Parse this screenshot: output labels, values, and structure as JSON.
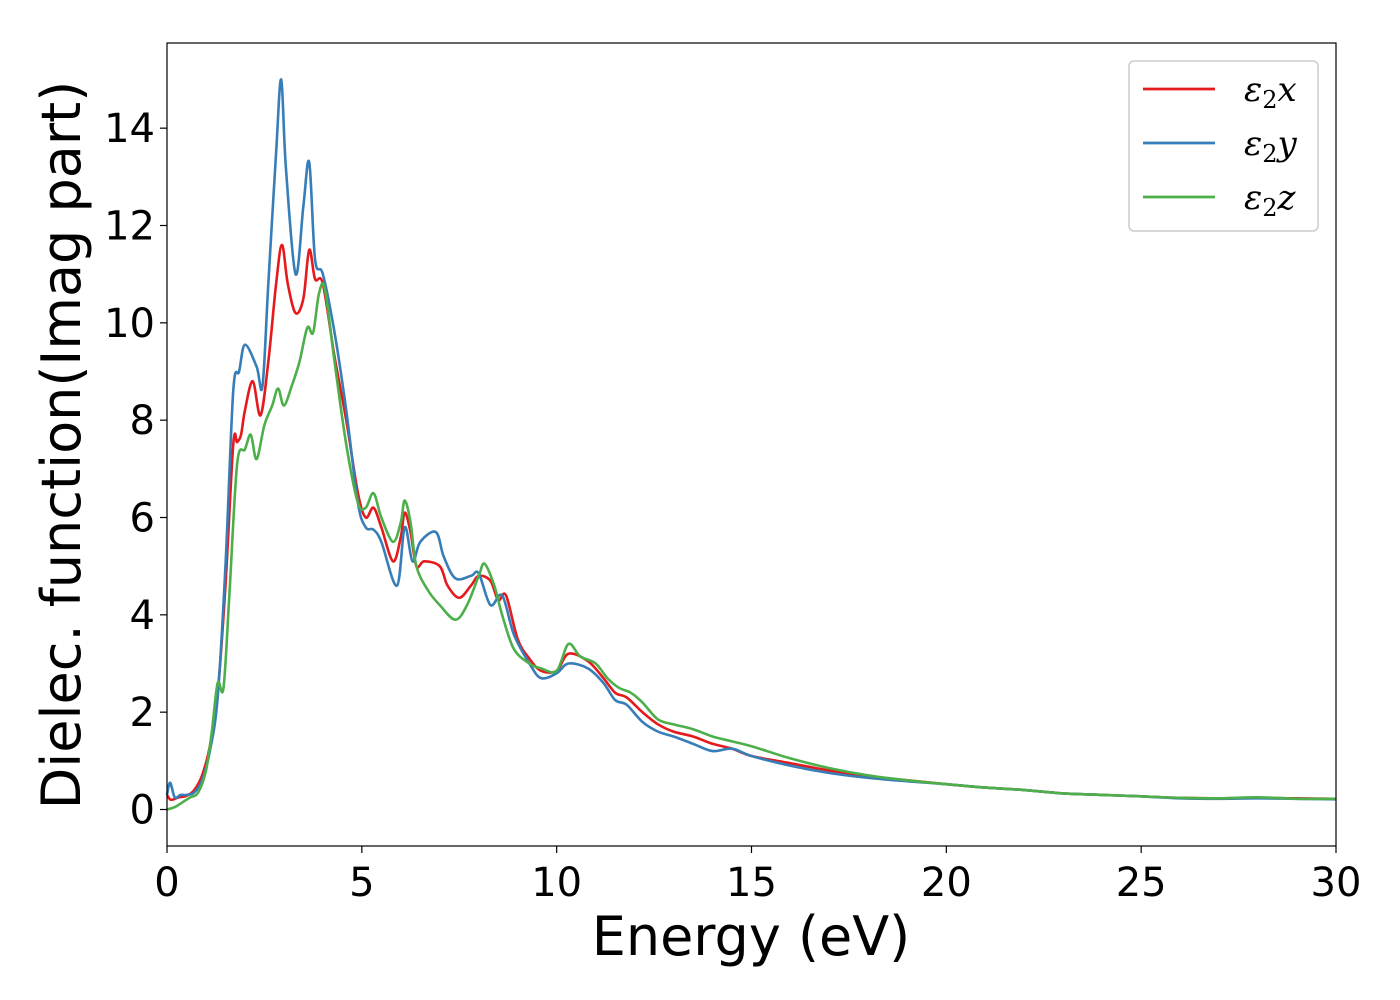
{
  "chart_data": {
    "type": "line",
    "title": "",
    "xlabel": "Energy (eV)",
    "ylabel": "Dielec. function(Imag part)",
    "xlim": [
      0,
      30
    ],
    "ylim": [
      -0.75,
      15.75
    ],
    "xticks": [
      0,
      5,
      10,
      15,
      20,
      25,
      30
    ],
    "yticks": [
      0,
      2,
      4,
      6,
      8,
      10,
      12,
      14
    ],
    "grid": false,
    "legend_position": "top-right",
    "series": [
      {
        "name": "ε₂x",
        "legend_main": "ε",
        "legend_sub": "2",
        "legend_suffix": "x",
        "color": "#e41a1c",
        "x": [
          0,
          0.1,
          0.3,
          0.5,
          0.7,
          0.9,
          1.1,
          1.3,
          1.5,
          1.7,
          1.8,
          1.9,
          2.0,
          2.2,
          2.4,
          2.6,
          2.8,
          2.95,
          3.1,
          3.3,
          3.5,
          3.65,
          3.8,
          4.0,
          4.3,
          4.6,
          4.9,
          5.1,
          5.3,
          5.5,
          5.8,
          6.0,
          6.1,
          6.25,
          6.4,
          6.6,
          7.0,
          7.2,
          7.5,
          7.8,
          8.0,
          8.3,
          8.5,
          8.7,
          9.0,
          9.3,
          9.6,
          10.0,
          10.3,
          10.8,
          11.2,
          11.5,
          11.8,
          12.2,
          12.6,
          13.0,
          13.5,
          14.0,
          14.5,
          15.0,
          16.0,
          17.0,
          18.0,
          19.0,
          20.0,
          21.0,
          22.0,
          23.0,
          24.0,
          25.0,
          26.0,
          27.0,
          28.0,
          29.0,
          30.0
        ],
        "y": [
          0.3,
          0.2,
          0.25,
          0.28,
          0.4,
          0.7,
          1.3,
          2.4,
          4.6,
          7.5,
          7.55,
          7.7,
          8.2,
          8.8,
          8.1,
          9.2,
          10.8,
          11.6,
          10.8,
          10.2,
          10.5,
          11.5,
          10.9,
          10.8,
          9.3,
          8.0,
          6.5,
          6.0,
          6.2,
          5.8,
          5.1,
          5.6,
          6.1,
          5.7,
          5.0,
          5.1,
          5.0,
          4.6,
          4.35,
          4.6,
          4.8,
          4.7,
          4.3,
          4.4,
          3.5,
          3.1,
          2.85,
          2.85,
          3.2,
          3.05,
          2.7,
          2.4,
          2.3,
          2.0,
          1.75,
          1.6,
          1.5,
          1.35,
          1.25,
          1.1,
          0.95,
          0.8,
          0.68,
          0.6,
          0.52,
          0.45,
          0.4,
          0.33,
          0.3,
          0.27,
          0.24,
          0.23,
          0.24,
          0.23,
          0.22
        ]
      },
      {
        "name": "ε₂y",
        "legend_main": "ε",
        "legend_sub": "2",
        "legend_suffix": "y",
        "color": "#377eb8",
        "x": [
          0,
          0.08,
          0.2,
          0.35,
          0.5,
          0.7,
          0.9,
          1.1,
          1.3,
          1.5,
          1.7,
          1.85,
          2.0,
          2.3,
          2.45,
          2.6,
          2.8,
          2.93,
          3.05,
          3.3,
          3.5,
          3.65,
          3.8,
          4.0,
          4.3,
          4.6,
          4.9,
          5.1,
          5.3,
          5.5,
          5.9,
          6.1,
          6.3,
          6.5,
          6.9,
          7.1,
          7.4,
          7.8,
          8.0,
          8.3,
          8.6,
          8.9,
          9.3,
          9.6,
          10.0,
          10.3,
          10.8,
          11.2,
          11.5,
          11.8,
          12.2,
          12.6,
          13.0,
          13.5,
          14.0,
          14.5,
          15.0,
          16.0,
          17.0,
          18.0,
          19.0,
          20.0,
          21.0,
          22.0,
          23.0,
          24.0,
          25.0,
          26.0,
          27.0,
          28.0,
          29.0,
          30.0
        ],
        "y": [
          0.3,
          0.55,
          0.25,
          0.3,
          0.3,
          0.35,
          0.6,
          1.2,
          2.3,
          5.0,
          8.6,
          9.0,
          9.55,
          9.1,
          8.7,
          10.8,
          13.5,
          15.0,
          13.2,
          11.0,
          12.4,
          13.3,
          11.3,
          11.0,
          9.8,
          8.2,
          6.3,
          5.8,
          5.75,
          5.5,
          4.6,
          5.8,
          5.1,
          5.5,
          5.7,
          5.2,
          4.75,
          4.8,
          4.85,
          4.2,
          4.4,
          3.6,
          3.0,
          2.7,
          2.8,
          3.0,
          2.9,
          2.6,
          2.25,
          2.15,
          1.8,
          1.6,
          1.5,
          1.35,
          1.2,
          1.25,
          1.1,
          0.9,
          0.75,
          0.65,
          0.58,
          0.52,
          0.45,
          0.4,
          0.33,
          0.3,
          0.27,
          0.23,
          0.22,
          0.23,
          0.22,
          0.21
        ]
      },
      {
        "name": "ε₂z",
        "legend_main": "ε",
        "legend_sub": "2",
        "legend_suffix": "z",
        "color": "#4daf4a",
        "x": [
          0,
          0.2,
          0.4,
          0.6,
          0.8,
          1.0,
          1.15,
          1.3,
          1.45,
          1.6,
          1.8,
          2.0,
          2.15,
          2.3,
          2.5,
          2.7,
          2.85,
          3.0,
          3.2,
          3.4,
          3.6,
          3.75,
          3.9,
          4.05,
          4.3,
          4.6,
          4.9,
          5.1,
          5.3,
          5.5,
          5.8,
          6.0,
          6.1,
          6.25,
          6.4,
          6.7,
          7.0,
          7.4,
          7.7,
          8.0,
          8.15,
          8.4,
          8.6,
          8.9,
          9.3,
          9.6,
          10.0,
          10.3,
          10.6,
          11.0,
          11.3,
          11.6,
          11.9,
          12.2,
          12.6,
          13.0,
          13.5,
          14.0,
          14.5,
          15.0,
          16.0,
          17.0,
          18.0,
          19.0,
          20.0,
          21.0,
          22.0,
          23.0,
          24.0,
          25.0,
          26.0,
          27.0,
          28.0,
          29.0,
          30.0
        ],
        "y": [
          0.0,
          0.05,
          0.15,
          0.25,
          0.35,
          0.8,
          1.6,
          2.6,
          2.5,
          4.4,
          7.1,
          7.4,
          7.7,
          7.2,
          7.9,
          8.3,
          8.65,
          8.3,
          8.7,
          9.2,
          9.9,
          9.8,
          10.6,
          10.7,
          9.2,
          7.5,
          6.3,
          6.2,
          6.5,
          6.0,
          5.5,
          5.9,
          6.35,
          5.9,
          5.0,
          4.5,
          4.2,
          3.9,
          4.2,
          4.8,
          5.05,
          4.6,
          4.0,
          3.3,
          3.0,
          2.9,
          2.85,
          3.4,
          3.15,
          3.0,
          2.7,
          2.5,
          2.4,
          2.2,
          1.85,
          1.75,
          1.65,
          1.5,
          1.4,
          1.3,
          1.05,
          0.85,
          0.7,
          0.6,
          0.52,
          0.45,
          0.4,
          0.33,
          0.3,
          0.27,
          0.24,
          0.23,
          0.25,
          0.22,
          0.22
        ]
      }
    ]
  }
}
